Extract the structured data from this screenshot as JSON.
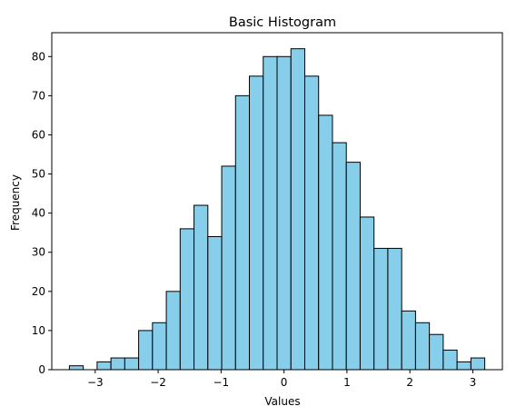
{
  "chart_data": {
    "type": "bar",
    "title": "Basic Histogram",
    "xlabel": "Values",
    "ylabel": "Frequency",
    "bin_edges": [
      -3.41,
      -3.19,
      -2.97,
      -2.75,
      -2.53,
      -2.31,
      -2.09,
      -1.87,
      -1.65,
      -1.43,
      -1.21,
      -0.99,
      -0.77,
      -0.55,
      -0.33,
      -0.11,
      0.11,
      0.33,
      0.55,
      0.77,
      0.99,
      1.21,
      1.43,
      1.65,
      1.87,
      2.09,
      2.31,
      2.53,
      2.75,
      2.97,
      3.19
    ],
    "values": [
      1,
      0,
      2,
      3,
      3,
      10,
      12,
      20,
      36,
      42,
      34,
      52,
      70,
      75,
      80,
      80,
      82,
      75,
      65,
      58,
      53,
      39,
      31,
      31,
      15,
      12,
      9,
      5,
      2,
      3
    ],
    "xlim": [
      -3.69,
      3.47
    ],
    "ylim": [
      0,
      86.1
    ],
    "x_ticks": [
      -3,
      -2,
      -1,
      0,
      1,
      2,
      3
    ],
    "x_tick_labels": [
      "−3",
      "−2",
      "−1",
      "0",
      "1",
      "2",
      "3"
    ],
    "y_ticks": [
      0,
      10,
      20,
      30,
      40,
      50,
      60,
      70,
      80
    ],
    "y_tick_labels": [
      "0",
      "10",
      "20",
      "30",
      "40",
      "50",
      "60",
      "70",
      "80"
    ],
    "bar_color": "#87CEEB",
    "edge_color": "#000000",
    "grid": false,
    "legend": "none"
  }
}
